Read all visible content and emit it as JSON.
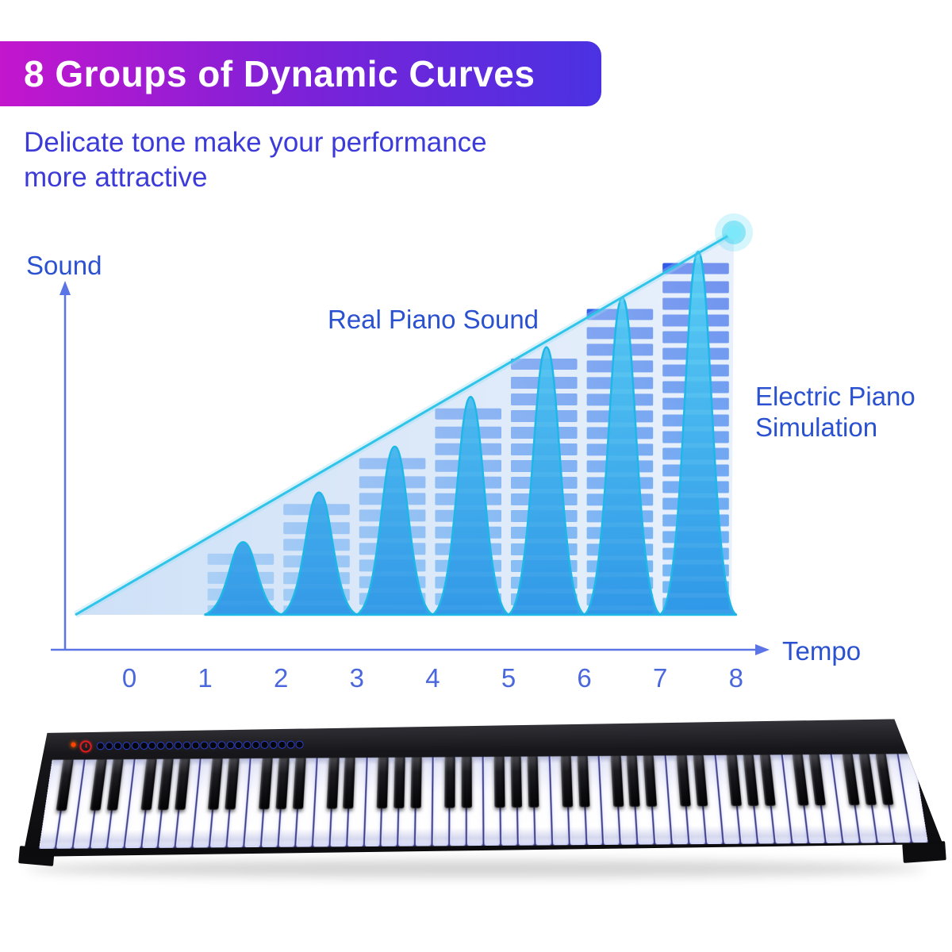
{
  "banner": {
    "title": "8 Groups of Dynamic Curves",
    "gradient_left": "#c316cd",
    "gradient_mid": "#7a22d8",
    "gradient_right": "#4a32e2"
  },
  "subtitle": {
    "line1": "Delicate tone make your performance",
    "line2": "more attractive",
    "color": "#3c3ad9"
  },
  "chart_data": {
    "type": "composite",
    "title": "",
    "ylabel": "Sound",
    "xlabel": "Tempo",
    "x_ticks": [
      "0",
      "1",
      "2",
      "3",
      "4",
      "5",
      "6",
      "7",
      "8"
    ],
    "x_range": [
      0,
      8
    ],
    "y_range": [
      0,
      1
    ],
    "grid": false,
    "legend_position": "inline-annotations",
    "annotations": [
      {
        "id": "curves-label",
        "text": "Real Piano Sound"
      },
      {
        "id": "bars-label",
        "text": "Electric Piano Simulation"
      }
    ],
    "series": [
      {
        "name": "Electric Piano Simulation",
        "type": "segmented-bar",
        "x_intervals": [
          [
            1,
            2
          ],
          [
            2,
            3
          ],
          [
            3,
            4
          ],
          [
            4,
            5
          ],
          [
            5,
            6
          ],
          [
            6,
            7
          ],
          [
            7,
            8
          ]
        ],
        "values": [
          0.16,
          0.29,
          0.41,
          0.54,
          0.67,
          0.8,
          0.92
        ]
      },
      {
        "name": "Real Piano Sound",
        "type": "bell-curve",
        "x_intervals": [
          [
            1,
            2
          ],
          [
            2,
            3
          ],
          [
            3,
            4
          ],
          [
            4,
            5
          ],
          [
            5,
            6
          ],
          [
            6,
            7
          ],
          [
            7,
            8
          ]
        ],
        "values": [
          0.19,
          0.32,
          0.44,
          0.57,
          0.7,
          0.83,
          0.95
        ]
      },
      {
        "name": "crescendo-trend",
        "type": "triangle-area",
        "x": [
          0,
          8
        ],
        "values": [
          0,
          1
        ]
      }
    ],
    "colors": {
      "bar_top": "#3354e8",
      "bar_bottom": "#2e9df4",
      "bell_top": "#58d6f5",
      "bell_bottom": "#2894e6",
      "bell_stroke": "#1db8e8",
      "triangle": "#c9ddf6",
      "trend_line": "#2fc4e8",
      "axis": "#5b74e6",
      "tick_text": "#4a67de",
      "label_text": "#2a51cf",
      "glow": "#40d4f2"
    }
  },
  "piano": {
    "white_key_count": 52,
    "black_key_count": 36,
    "control_buttons_count": 24,
    "power_led_color": "#ff4400",
    "power_button_color": "#e11b1b",
    "button_ring_color": "#2a3fd0"
  }
}
